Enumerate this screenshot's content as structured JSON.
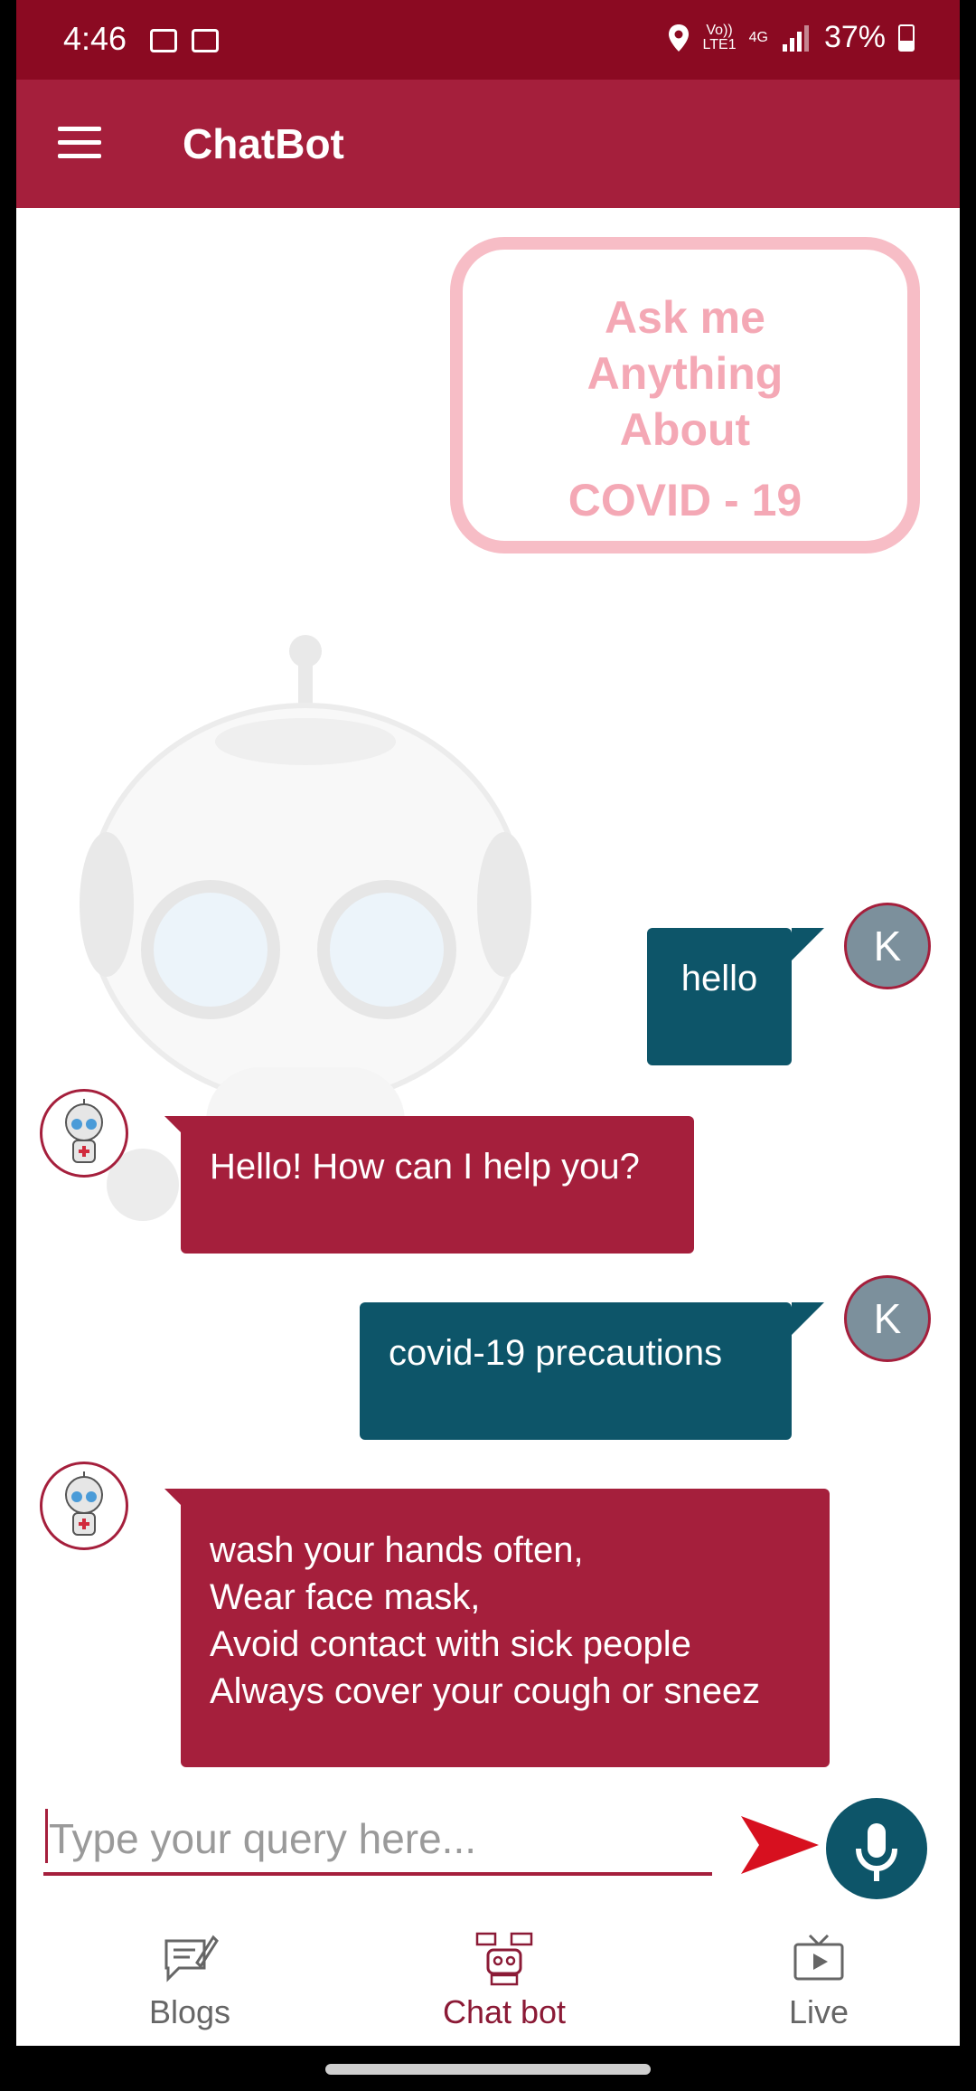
{
  "status_bar": {
    "time": "4:46",
    "volte": "Vo))",
    "lte": "LTE1",
    "network": "4G",
    "battery": "37%"
  },
  "app_bar": {
    "title": "ChatBot",
    "menu_icon": "hamburger-icon"
  },
  "background_art": {
    "line1": "Ask me Anything",
    "line2": "About",
    "line3": "COVID - 19"
  },
  "messages": [
    {
      "sender": "user",
      "avatar": "K",
      "text": "hello"
    },
    {
      "sender": "bot",
      "text": "Hello! How can I help you?"
    },
    {
      "sender": "user",
      "avatar": "K",
      "text": "covid-19 precautions"
    },
    {
      "sender": "bot",
      "lines": [
        "wash your hands often,",
        "Wear face mask,",
        "Avoid contact with sick people",
        "Always cover your cough or sneez"
      ]
    }
  ],
  "input": {
    "placeholder": "Type your query here...",
    "value": ""
  },
  "colors": {
    "primary": "#a51f3c",
    "status_bar": "#8b0a22",
    "user_bubble": "#0d5569",
    "bot_bubble": "#a51f3c"
  },
  "bottom_nav": {
    "items": [
      {
        "label": "Blogs",
        "icon": "blog-icon"
      },
      {
        "label": "Chat bot",
        "icon": "chatbot-icon",
        "active": true
      },
      {
        "label": "Live",
        "icon": "tv-icon"
      }
    ]
  }
}
